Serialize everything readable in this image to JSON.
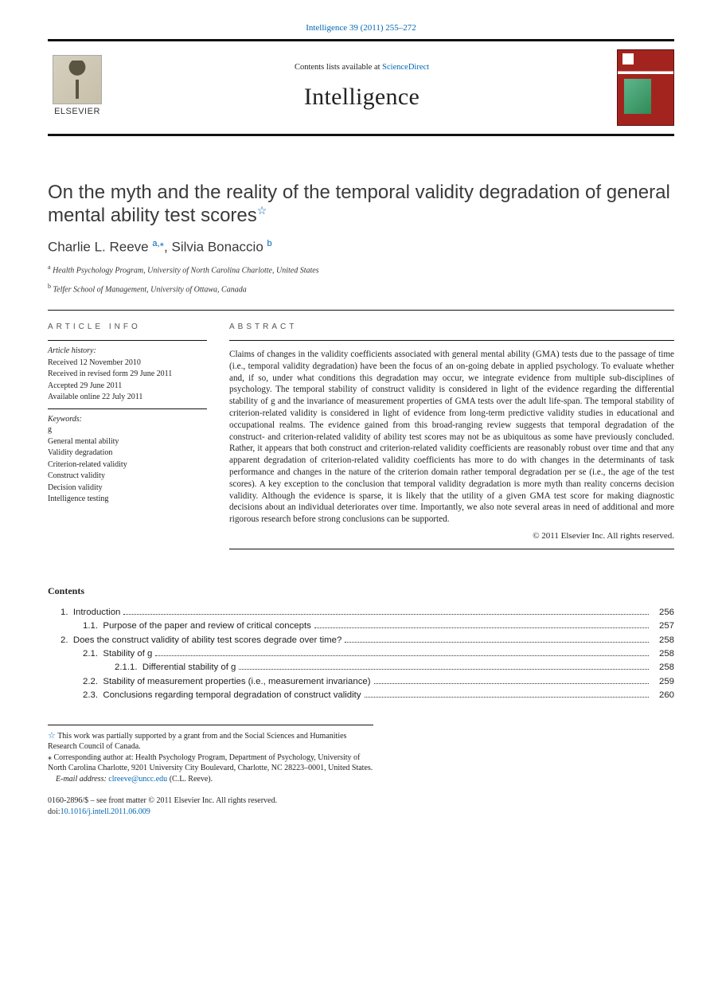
{
  "header": {
    "top_link_text": "Intelligence 39 (2011) 255–272",
    "contents_prefix": "Contents lists available at ",
    "contents_link": "ScienceDirect",
    "journal": "Intelligence",
    "publisher_word": "ELSEVIER"
  },
  "title": "On the myth and the reality of the temporal validity degradation of general mental ability test scores",
  "title_star": "☆",
  "authors": {
    "a1_name": "Charlie L. Reeve",
    "a1_marks": "a,",
    "a1_star": "⁎",
    "sep": ", ",
    "a2_name": "Silvia Bonaccio",
    "a2_marks": "b"
  },
  "affiliations": {
    "a": "Health Psychology Program, University of North Carolina Charlotte, United States",
    "b": "Telfer School of Management, University of Ottawa, Canada"
  },
  "info_head": "article info",
  "abstract_head": "abstract",
  "history": {
    "label": "Article history:",
    "received": "Received 12 November 2010",
    "revised": "Received in revised form 29 June 2011",
    "accepted": "Accepted 29 June 2011",
    "online": "Available online 22 July 2011"
  },
  "keywords": {
    "label": "Keywords:",
    "items": [
      "g",
      "General mental ability",
      "Validity degradation",
      "Criterion-related validity",
      "Construct validity",
      "Decision validity",
      "Intelligence testing"
    ]
  },
  "abstract": "Claims of changes in the validity coefficients associated with general mental ability (GMA) tests due to the passage of time (i.e., temporal validity degradation) have been the focus of an on-going debate in applied psychology. To evaluate whether and, if so, under what conditions this degradation may occur, we integrate evidence from multiple sub-disciplines of psychology. The temporal stability of construct validity is considered in light of the evidence regarding the differential stability of g and the invariance of measurement properties of GMA tests over the adult life-span. The temporal stability of criterion-related validity is considered in light of evidence from long-term predictive validity studies in educational and occupational realms. The evidence gained from this broad-ranging review suggests that temporal degradation of the construct- and criterion-related validity of ability test scores may not be as ubiquitous as some have previously concluded. Rather, it appears that both construct and criterion-related validity coefficients are reasonably robust over time and that any apparent degradation of criterion-related validity coefficients has more to do with changes in the determinants of task performance and changes in the nature of the criterion domain rather temporal degradation per se (i.e., the age of the test scores). A key exception to the conclusion that temporal validity degradation is more myth than reality concerns decision validity. Although the evidence is sparse, it is likely that the utility of a given GMA test score for making diagnostic decisions about an individual deteriorates over time. Importantly, we also note several areas in need of additional and more rigorous research before strong conclusions can be supported.",
  "copyright": "© 2011 Elsevier Inc. All rights reserved.",
  "contents_title": "Contents",
  "toc": [
    {
      "n": "1.",
      "t": "Introduction",
      "p": "256",
      "i": 0
    },
    {
      "n": "1.1.",
      "t": "Purpose of the paper and review of critical concepts",
      "p": "257",
      "i": 1
    },
    {
      "n": "2.",
      "t": "Does the construct validity of ability test scores degrade over time?",
      "p": "258",
      "i": 0
    },
    {
      "n": "2.1.",
      "t": "Stability of g",
      "p": "258",
      "i": 1
    },
    {
      "n": "2.1.1.",
      "t": "Differential stability of g",
      "p": "258",
      "i": 2
    },
    {
      "n": "2.2.",
      "t": "Stability of measurement properties (i.e., measurement invariance)",
      "p": "259",
      "i": 1
    },
    {
      "n": "2.3.",
      "t": "Conclusions regarding temporal degradation of construct validity",
      "p": "260",
      "i": 1
    }
  ],
  "footnotes": {
    "fn_star": "☆  This work was partially supported by a grant from and the Social Sciences and Humanities Research Council of Canada.",
    "fn_corr": "⁎ Corresponding author at: Health Psychology Program, Department of Psychology, University of North Carolina Charlotte, 9201 University City Boulevard, Charlotte, NC 28223–0001, United States.",
    "email_label": "E-mail address: ",
    "email": "clreeve@uncc.edu",
    "email_suffix": " (C.L. Reeve)."
  },
  "footer": {
    "line1": "0160-2896/$ – see front matter © 2011 Elsevier Inc. All rights reserved.",
    "doi_prefix": "doi:",
    "doi": "10.1016/j.intell.2011.06.009"
  },
  "colors": {
    "link": "#0066b3",
    "rule": "#111111",
    "cover_red": "#a3241f"
  }
}
